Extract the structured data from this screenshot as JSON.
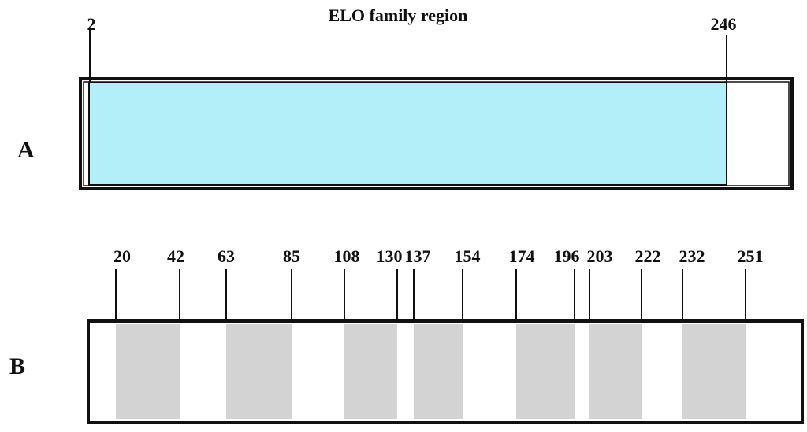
{
  "panel_a": {
    "label": "A",
    "title": "ELO family region",
    "start": 2,
    "end": 246
  },
  "panel_b": {
    "label": "B",
    "positions": [
      20,
      42,
      63,
      85,
      108,
      130,
      137,
      154,
      174,
      196,
      203,
      222,
      232,
      251
    ]
  }
}
